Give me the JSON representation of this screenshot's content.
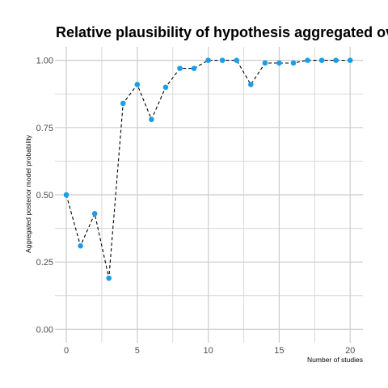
{
  "chart_data": {
    "type": "line",
    "title": "Relative plausibility of hypothesis aggregated over studies",
    "xlabel": "Number of studies",
    "ylabel": "Aggregated posterior model probability",
    "xlim": [
      -0.8,
      20.9
    ],
    "ylim": [
      -0.05,
      1.05
    ],
    "x_ticks": [
      "0",
      "5",
      "10",
      "15",
      "20"
    ],
    "y_ticks": [
      "0.00",
      "0.25",
      "0.50",
      "0.75",
      "1.00"
    ],
    "grid": true,
    "line_style": "dashed",
    "line_color": "#000000",
    "point_color": "#1a9ee6",
    "series": [
      {
        "x": [
          0,
          1,
          2,
          3,
          4,
          5,
          6,
          7,
          8,
          9,
          10,
          11,
          12,
          13,
          14,
          15,
          16,
          17,
          18,
          19,
          20
        ],
        "values": [
          0.5,
          0.31,
          0.43,
          0.19,
          0.84,
          0.91,
          0.78,
          0.9,
          0.97,
          0.97,
          1.0,
          1.0,
          1.0,
          0.91,
          0.99,
          0.99,
          0.99,
          1.0,
          1.0,
          1.0,
          1.0
        ]
      }
    ]
  }
}
